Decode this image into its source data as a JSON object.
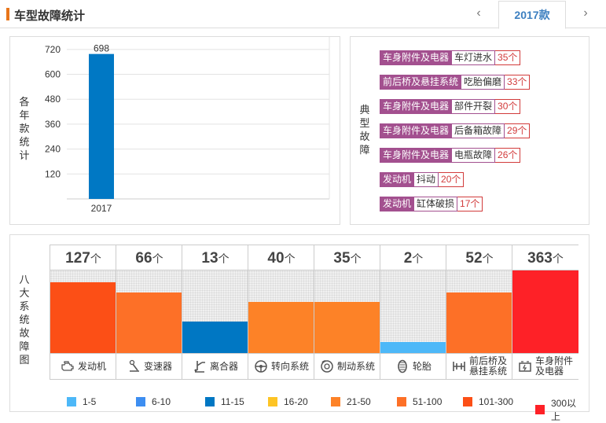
{
  "header": {
    "title": "车型故障统计",
    "prev_icon": "‹",
    "tab_label": "2017款",
    "next_icon": "›"
  },
  "chart_label": "各年款统计",
  "chart_data": {
    "type": "bar",
    "categories": [
      "2017"
    ],
    "values": [
      698
    ],
    "data_labels": [
      "698"
    ],
    "yticks": [
      120,
      240,
      360,
      480,
      600,
      720
    ],
    "ylim": [
      0,
      780
    ],
    "grid": true,
    "bar_color": "#0078c4"
  },
  "typical_label": "典型故障",
  "typical_faults": [
    {
      "category": "车身附件及电器",
      "name": "车灯进水",
      "count": "35个"
    },
    {
      "category": "前后桥及悬挂系统",
      "name": "吃胎偏磨",
      "count": "33个"
    },
    {
      "category": "车身附件及电器",
      "name": "部件开裂",
      "count": "30个"
    },
    {
      "category": "车身附件及电器",
      "name": "后备箱故障",
      "count": "29个"
    },
    {
      "category": "车身附件及电器",
      "name": "电瓶故障",
      "count": "26个"
    },
    {
      "category": "发动机",
      "name": "抖动",
      "count": "20个"
    },
    {
      "category": "发动机",
      "name": "缸体破损",
      "count": "17个"
    }
  ],
  "systems_label": "八大系统故障图",
  "systems": [
    {
      "num": "127",
      "unit": "个",
      "label1": "发动机",
      "label2": "",
      "icon": "engine-icon",
      "color": "#fc4f16",
      "fill": 0.86
    },
    {
      "num": "66",
      "unit": "个",
      "label1": "变速器",
      "label2": "",
      "icon": "gear-shift-icon",
      "color": "#fd7027",
      "fill": 0.73
    },
    {
      "num": "13",
      "unit": "个",
      "label1": "离合器",
      "label2": "",
      "icon": "clutch-icon",
      "color": "#0077c3",
      "fill": 0.38
    },
    {
      "num": "40",
      "unit": "个",
      "label1": "转向系统",
      "label2": "",
      "icon": "steering-wheel-icon",
      "color": "#fd8227",
      "fill": 0.62
    },
    {
      "num": "35",
      "unit": "个",
      "label1": "制动系统",
      "label2": "",
      "icon": "brake-disc-icon",
      "color": "#fd8227",
      "fill": 0.62
    },
    {
      "num": "2",
      "unit": "个",
      "label1": "轮胎",
      "label2": "",
      "icon": "tire-icon",
      "color": "#4db8f8",
      "fill": 0.13
    },
    {
      "num": "52",
      "unit": "个",
      "label1": "前后桥及",
      "label2": "悬挂系统",
      "icon": "axle-icon",
      "color": "#fd7027",
      "fill": 0.73
    },
    {
      "num": "363",
      "unit": "个",
      "label1": "车身附件",
      "label2": "及电器",
      "icon": "battery-icon",
      "color": "#fe2127",
      "fill": 1.0
    }
  ],
  "legend": [
    {
      "label": "1-5",
      "color": "#4db8f8"
    },
    {
      "label": "6-10",
      "color": "#3d8ef1"
    },
    {
      "label": "11-15",
      "color": "#0077c3"
    },
    {
      "label": "16-20",
      "color": "#fdc425"
    },
    {
      "label": "21-50",
      "color": "#fd8227"
    },
    {
      "label": "51-100",
      "color": "#fd7027"
    },
    {
      "label": "101-300",
      "color": "#fc4f16"
    },
    {
      "label": "300以上",
      "color": "#fe2127"
    }
  ]
}
